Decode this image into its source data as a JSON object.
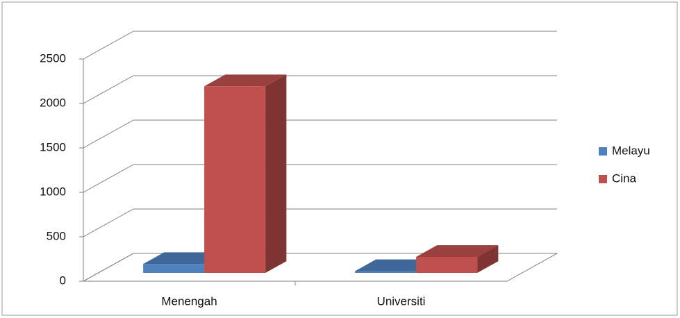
{
  "chart_data": {
    "type": "bar3d",
    "categories": [
      "Menengah",
      "Universiti"
    ],
    "series": [
      {
        "name": "Melayu",
        "color": "#4f81bd",
        "values": [
          100,
          20
        ]
      },
      {
        "name": "Cina",
        "color": "#c0504d",
        "values": [
          2100,
          180
        ]
      }
    ],
    "ylim": [
      0,
      2500
    ],
    "yticks": [
      0,
      500,
      1000,
      1500,
      2000,
      2500
    ],
    "grid": true,
    "legend": "right"
  }
}
